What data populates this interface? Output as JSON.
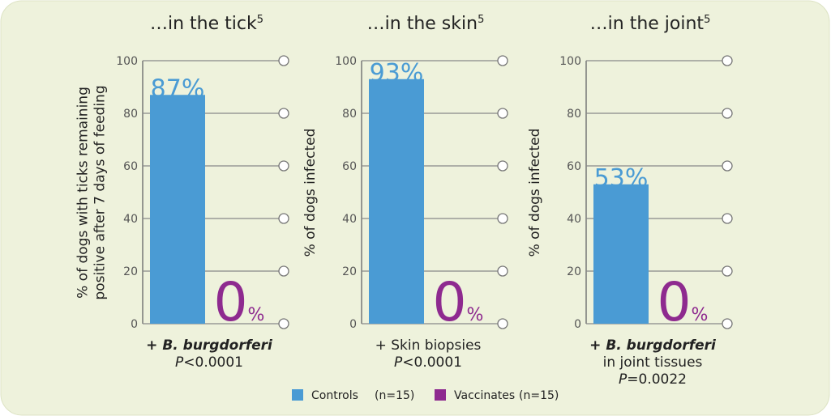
{
  "chart_data": [
    {
      "type": "bar",
      "title": "…in the tick",
      "title_sup": "5",
      "y_label": [
        "% of dogs with ticks remaining",
        "positive after 7 days of feeding"
      ],
      "series": [
        {
          "color": "#4a9bd4",
          "values": [
            87
          ],
          "value_labels": [
            "87%"
          ]
        },
        {
          "color": "#8e2a8f",
          "values": [
            0
          ],
          "value_labels": [
            "0%"
          ]
        }
      ],
      "ylim": [
        0,
        100
      ],
      "yticks": [
        0,
        20,
        40,
        60,
        80,
        100
      ],
      "grid": true,
      "notes": [
        "+ B. burgdorferi",
        "P<0.0001"
      ]
    },
    {
      "type": "bar",
      "title": "…in the skin",
      "title_sup": "5",
      "y_label": [
        "% of dogs infected"
      ],
      "series": [
        {
          "color": "#4a9bd4",
          "values": [
            93
          ],
          "value_labels": [
            "93%"
          ]
        },
        {
          "color": "#8e2a8f",
          "values": [
            0
          ],
          "value_labels": [
            "0%"
          ]
        }
      ],
      "ylim": [
        0,
        100
      ],
      "yticks": [
        0,
        20,
        40,
        60,
        80,
        100
      ],
      "grid": true,
      "notes": [
        "+ Skin biopsies",
        "P<0.0001"
      ]
    },
    {
      "type": "bar",
      "title": "…in the joint",
      "title_sup": "5",
      "y_label": [
        "% of dogs infected"
      ],
      "series": [
        {
          "color": "#4a9bd4",
          "values": [
            53
          ],
          "value_labels": [
            "53%"
          ]
        },
        {
          "color": "#8e2a8f",
          "values": [
            0
          ],
          "value_labels": [
            "0%"
          ]
        }
      ],
      "ylim": [
        0,
        100
      ],
      "yticks": [
        0,
        20,
        40,
        60,
        80,
        100
      ],
      "grid": true,
      "notes": [
        "+ B. burgdorferi",
        "in joint tissues",
        "P=0.0022"
      ]
    }
  ],
  "legend": [
    {
      "name": "Controls",
      "color": "#4a9bd4",
      "n": "(n=15)"
    },
    {
      "name": "Vaccinates",
      "color": "#8e2a8f",
      "n": "(n=15)"
    }
  ]
}
